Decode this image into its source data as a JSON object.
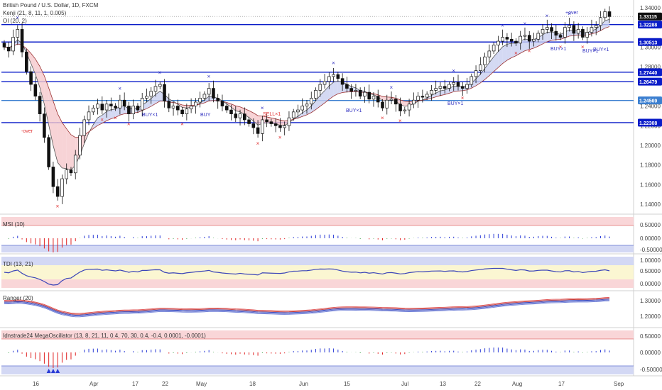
{
  "header": {
    "symbol_line": "British Pound / U.S. Dollar, 1D, FXCM",
    "indicator_1": "Kenji (21, 8, 11, 1, 0.005)",
    "indicator_2": "OI (20, 2)"
  },
  "colors": {
    "level_line": "#0a1cc8",
    "level_line_light": "#3b7fd0",
    "candle_body": "#111111",
    "up_candle": "#ffffff",
    "band_red": "#f5c8cc",
    "band_blue": "#c9d0f0",
    "signal_red": "#e03030",
    "signal_blue": "#3030c0",
    "histogram_blue": "#2a3bd6",
    "histogram_red": "#e02020",
    "histogram_green": "#2e9a3a",
    "price_tag_dark": "#101010"
  },
  "x_axis": {
    "labels": [
      "16",
      "Apr",
      "17",
      "22",
      "May",
      "18",
      "Jun",
      "15",
      "Jul",
      "13",
      "22",
      "Aug",
      "17",
      "Sep"
    ]
  },
  "main_pane": {
    "y_ticks": [
      "1.34000",
      "1.30000",
      "1.28000",
      "1.24000",
      "1.22000",
      "1.20000",
      "1.18000",
      "1.16000",
      "1.14000"
    ],
    "current_price": "1.33115",
    "levels": [
      {
        "label": "1.32288",
        "value": 1.32288
      },
      {
        "label": "1.30513",
        "value": 1.30513
      },
      {
        "label": "1.27440",
        "value": 1.2744
      },
      {
        "label": "1.26479",
        "value": 1.26479
      },
      {
        "label": "1.24569",
        "value": 1.24569
      },
      {
        "label": "1.22308",
        "value": 1.22308
      }
    ],
    "signal_texts": [
      "BUY×1",
      "BUY",
      "SELL×1",
      "BUY×1",
      "BUY×1",
      "BUY×1",
      "BUY×1",
      "BUY×1",
      "-over",
      "+over"
    ]
  },
  "panes": [
    {
      "title": "MSI (10)",
      "ticks": [
        "0.50000",
        "0.00000",
        "-0.50000"
      ]
    },
    {
      "title": "TDI (13, 21)",
      "ticks": [
        "1.00000",
        "0.50000",
        "0.00000"
      ]
    },
    {
      "title": "Ranger (20)",
      "ticks": [
        "1.30000",
        "1.20000"
      ]
    },
    {
      "title": "Idnstrade24 MegaOscillator (13, 8, 21, 11, 0.4, 70, 30, 0.4, -0.4, 0.0001, -0.0001)",
      "ticks": [
        "0.50000",
        "0.00000",
        "-0.50000"
      ]
    }
  ],
  "chart_data": {
    "type": "candlestick",
    "symbol": "British Pound / U.S. Dollar",
    "timeframe": "1D",
    "ylim": [
      1.13,
      1.345
    ],
    "x_labels": [
      "16",
      "Apr",
      "17",
      "22",
      "May",
      "18",
      "Jun",
      "15",
      "Jul",
      "13",
      "22",
      "Aug",
      "17",
      "Sep"
    ],
    "close": [
      1.3,
      1.296,
      1.31,
      1.318,
      1.295,
      1.275,
      1.262,
      1.25,
      1.232,
      1.208,
      1.178,
      1.158,
      1.148,
      1.166,
      1.175,
      1.172,
      1.19,
      1.21,
      1.226,
      1.234,
      1.238,
      1.242,
      1.236,
      1.242,
      1.24,
      1.238,
      1.246,
      1.24,
      1.232,
      1.24,
      1.236,
      1.248,
      1.25,
      1.255,
      1.26,
      1.262,
      1.245,
      1.238,
      1.24,
      1.236,
      1.232,
      1.237,
      1.24,
      1.244,
      1.248,
      1.252,
      1.258,
      1.248,
      1.245,
      1.24,
      1.236,
      1.232,
      1.228,
      1.232,
      1.226,
      1.222,
      1.218,
      1.212,
      1.226,
      1.224,
      1.222,
      1.22,
      1.218,
      1.22,
      1.228,
      1.234,
      1.236,
      1.24,
      1.242,
      1.248,
      1.256,
      1.262,
      1.265,
      1.27,
      1.272,
      1.268,
      1.262,
      1.258,
      1.255,
      1.256,
      1.25,
      1.254,
      1.247,
      1.25,
      1.244,
      1.238,
      1.246,
      1.247,
      1.242,
      1.235,
      1.236,
      1.242,
      1.246,
      1.25,
      1.249,
      1.252,
      1.256,
      1.258,
      1.26,
      1.258,
      1.262,
      1.264,
      1.26,
      1.258,
      1.262,
      1.27,
      1.276,
      1.282,
      1.29,
      1.296,
      1.302,
      1.306,
      1.31,
      1.308,
      1.306,
      1.304,
      1.311,
      1.312,
      1.306,
      1.308,
      1.314,
      1.318,
      1.32,
      1.316,
      1.312,
      1.31,
      1.32,
      1.322,
      1.314,
      1.318,
      1.31,
      1.315,
      1.32,
      1.322,
      1.33,
      1.336,
      1.331
    ],
    "levels": [
      1.32288,
      1.30513,
      1.2744,
      1.26479,
      1.24569,
      1.22308
    ]
  }
}
